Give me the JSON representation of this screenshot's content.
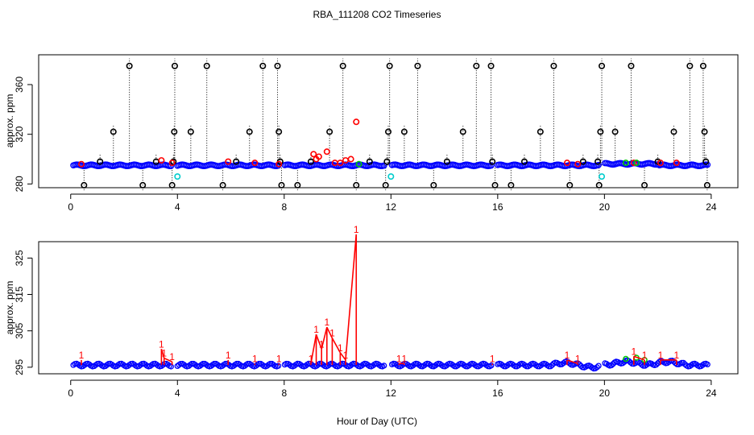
{
  "title": "RBA_111208  CO2 Timeseries",
  "colors": {
    "background": "#ffffff",
    "axis": "#000000",
    "series_main": "#0000ff",
    "flag_black": "#000000",
    "flag_red": "#ff0000",
    "flag_cyan": "#00cccc",
    "flag_green": "#00cc00",
    "line_red": "#ff0000"
  },
  "chart_data": [
    {
      "type": "scatter",
      "panel": "top",
      "title": "RBA_111208  CO2 Timeseries",
      "xlabel": "",
      "ylabel": "approx. ppm",
      "xlim": [
        -1.2,
        25
      ],
      "ylim": [
        277,
        384
      ],
      "xticks": [
        0,
        4,
        8,
        12,
        16,
        20,
        24
      ],
      "yticks": [
        280,
        320,
        360
      ],
      "baseline": 295,
      "baseline_gaps": [
        [
          3.8,
          4.0
        ],
        [
          7.8,
          8.0
        ],
        [
          11.8,
          12.0
        ],
        [
          15.8,
          16.0
        ],
        [
          19.8,
          20.0
        ]
      ],
      "series": [
        {
          "name": "main",
          "color": "blue",
          "marker": "circle",
          "note": "continuous baseline ~295 ppm, 0.1–23.9 h"
        },
        {
          "name": "flag high/low",
          "color": "black",
          "marker": "circle",
          "style": "dotted spike",
          "points": [
            [
              0.5,
              279
            ],
            [
              1.1,
              298
            ],
            [
              1.6,
              322
            ],
            [
              2.2,
              375
            ],
            [
              2.7,
              279
            ],
            [
              3.2,
              298
            ],
            [
              3.8,
              279
            ],
            [
              3.85,
              298
            ],
            [
              3.9,
              375
            ],
            [
              3.88,
              322
            ],
            [
              4.5,
              322
            ],
            [
              5.1,
              375
            ],
            [
              5.7,
              279
            ],
            [
              6.2,
              298
            ],
            [
              6.7,
              322
            ],
            [
              7.2,
              375
            ],
            [
              7.75,
              375
            ],
            [
              7.8,
              322
            ],
            [
              7.85,
              298
            ],
            [
              7.9,
              279
            ],
            [
              8.5,
              279
            ],
            [
              9.0,
              298
            ],
            [
              9.7,
              322
            ],
            [
              10.2,
              375
            ],
            [
              10.7,
              279
            ],
            [
              11.2,
              298
            ],
            [
              11.8,
              279
            ],
            [
              11.85,
              298
            ],
            [
              11.9,
              322
            ],
            [
              11.95,
              375
            ],
            [
              12.5,
              322
            ],
            [
              13.0,
              375
            ],
            [
              13.6,
              279
            ],
            [
              14.1,
              298
            ],
            [
              14.7,
              322
            ],
            [
              15.2,
              375
            ],
            [
              15.75,
              375
            ],
            [
              15.8,
              298
            ],
            [
              15.9,
              279
            ],
            [
              16.5,
              279
            ],
            [
              17.0,
              298
            ],
            [
              17.6,
              322
            ],
            [
              18.1,
              375
            ],
            [
              18.7,
              279
            ],
            [
              19.2,
              298
            ],
            [
              19.75,
              298
            ],
            [
              19.8,
              279
            ],
            [
              19.85,
              322
            ],
            [
              19.9,
              375
            ],
            [
              20.4,
              322
            ],
            [
              21.0,
              375
            ],
            [
              21.5,
              279
            ],
            [
              22.0,
              298
            ],
            [
              22.6,
              322
            ],
            [
              23.2,
              375
            ],
            [
              23.7,
              375
            ],
            [
              23.75,
              322
            ],
            [
              23.8,
              298
            ],
            [
              23.85,
              279
            ]
          ]
        },
        {
          "name": "flag red",
          "color": "red",
          "marker": "circle",
          "points": [
            [
              0.4,
              296
            ],
            [
              3.4,
              299
            ],
            [
              3.8,
              297
            ],
            [
              5.9,
              298
            ],
            [
              6.9,
              297
            ],
            [
              7.8,
              296
            ],
            [
              9.1,
              304
            ],
            [
              9.2,
              300
            ],
            [
              9.3,
              302
            ],
            [
              9.6,
              306
            ],
            [
              9.9,
              297
            ],
            [
              10.1,
              297
            ],
            [
              10.3,
              299
            ],
            [
              10.5,
              300
            ],
            [
              10.7,
              330
            ],
            [
              18.6,
              297
            ],
            [
              19.0,
              296
            ],
            [
              21.1,
              297
            ],
            [
              22.1,
              297
            ],
            [
              22.7,
              297
            ]
          ]
        },
        {
          "name": "flag cyan",
          "color": "cyan",
          "marker": "circle",
          "points": [
            [
              4.0,
              286
            ],
            [
              12.0,
              286
            ],
            [
              19.9,
              286
            ]
          ]
        },
        {
          "name": "flag green",
          "color": "green",
          "marker": "circle",
          "points": [
            [
              10.8,
              296
            ],
            [
              20.8,
              297
            ],
            [
              21.2,
              297
            ]
          ]
        }
      ]
    },
    {
      "type": "line",
      "panel": "bottom",
      "title": "",
      "xlabel": "Hour of Day (UTC)",
      "ylabel": "approx. ppm",
      "xlim": [
        -1.2,
        25
      ],
      "ylim": [
        293.2,
        329.5
      ],
      "xticks": [
        0,
        4,
        8,
        12,
        16,
        20,
        24
      ],
      "yticks": [
        295,
        305,
        315,
        325
      ],
      "point_label": "1",
      "series": [
        {
          "name": "main",
          "color": "blue",
          "marker": "circle",
          "note": "baseline ~295.5–296 ppm with small drift"
        },
        {
          "name": "flagged",
          "color": "red",
          "marker": "label '1'",
          "points": [
            [
              0.4,
              297
            ],
            [
              3.4,
              300
            ],
            [
              3.5,
              297.5
            ],
            [
              3.8,
              296.5
            ],
            [
              5.9,
              297
            ],
            [
              6.9,
              296
            ],
            [
              7.8,
              296
            ],
            [
              9.0,
              296
            ],
            [
              9.2,
              304
            ],
            [
              9.4,
              300
            ],
            [
              9.6,
              306
            ],
            [
              9.8,
              303
            ],
            [
              10.1,
              299
            ],
            [
              10.3,
              297
            ],
            [
              10.7,
              331.5
            ],
            [
              12.3,
              296
            ],
            [
              12.5,
              296
            ],
            [
              15.8,
              296
            ],
            [
              18.6,
              297
            ],
            [
              19.0,
              296
            ],
            [
              21.1,
              298
            ],
            [
              21.5,
              297
            ],
            [
              22.1,
              297
            ],
            [
              22.7,
              297
            ]
          ]
        },
        {
          "name": "green",
          "color": "green",
          "marker": "circle",
          "points": [
            [
              20.8,
              297.3
            ],
            [
              21.2,
              297.6
            ],
            [
              21.5,
              297.0
            ]
          ]
        }
      ]
    }
  ]
}
